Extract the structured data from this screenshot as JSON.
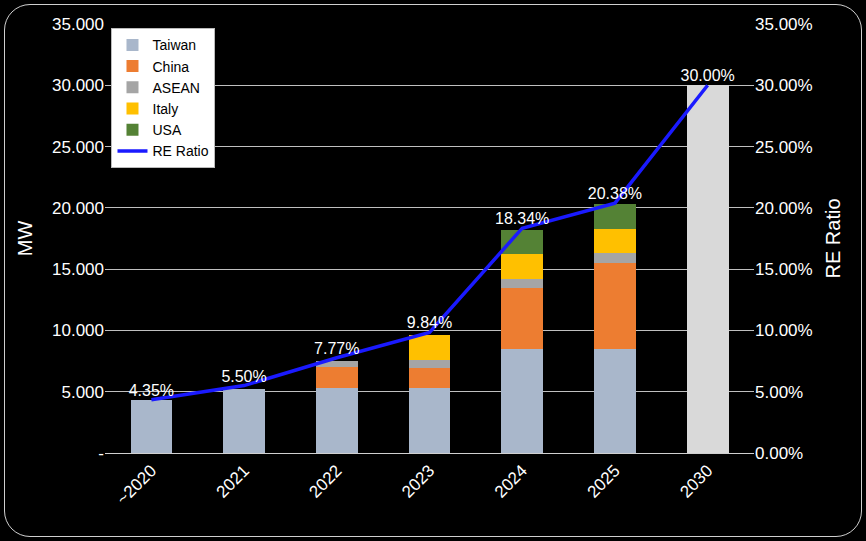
{
  "chart_data": {
    "type": "bar",
    "stacked": true,
    "grid": true,
    "legend": "upper left",
    "y_label": "MW",
    "y2_label": "RE Ratio",
    "categories": [
      "~2020",
      "2021",
      "2022",
      "2023",
      "2024",
      "2025",
      "2030"
    ],
    "ylim": [
      0,
      35000
    ],
    "yticks": [
      {
        "value": 0,
        "label": "-"
      },
      {
        "value": 5000,
        "label": "5.000"
      },
      {
        "value": 10000,
        "label": "10.000"
      },
      {
        "value": 15000,
        "label": "15.000"
      },
      {
        "value": 20000,
        "label": "20.000"
      },
      {
        "value": 25000,
        "label": "25.000"
      },
      {
        "value": 30000,
        "label": "30.000"
      },
      {
        "value": 35000,
        "label": "35.000"
      }
    ],
    "y2lim": [
      0,
      35
    ],
    "y2ticks": [
      {
        "value": 0,
        "label": "0.00%"
      },
      {
        "value": 5,
        "label": "5.00%"
      },
      {
        "value": 10,
        "label": "10.00%"
      },
      {
        "value": 15,
        "label": "15.00%"
      },
      {
        "value": 20,
        "label": "20.00%"
      },
      {
        "value": 25,
        "label": "25.00%"
      },
      {
        "value": 30,
        "label": "30.00%"
      },
      {
        "value": 35,
        "label": "35.00%"
      }
    ],
    "series": [
      {
        "name": "Taiwan",
        "type": "bar",
        "color": "#A9B7CB",
        "colors": [
          "#A9B7CB",
          "#A9B7CB",
          "#A9B7CB",
          "#A9B7CB",
          "#A9B7CB",
          "#A9B7CB",
          "#D9D9D9"
        ],
        "values": [
          4300,
          5200,
          5300,
          5300,
          8500,
          8500,
          30000
        ]
      },
      {
        "name": "China",
        "type": "bar",
        "color": "#ED7D31",
        "values": [
          0,
          0,
          1700,
          1600,
          5000,
          7000,
          0
        ]
      },
      {
        "name": "ASEAN",
        "type": "bar",
        "color": "#A5A5A5",
        "values": [
          0,
          0,
          500,
          700,
          700,
          800,
          0
        ]
      },
      {
        "name": "Italy",
        "type": "bar",
        "color": "#FFC000",
        "values": [
          0,
          0,
          0,
          2000,
          2000,
          2000,
          0
        ]
      },
      {
        "name": "USA",
        "type": "bar",
        "color": "#548235",
        "values": [
          0,
          0,
          0,
          0,
          2000,
          2000,
          0
        ]
      },
      {
        "name": "RE Ratio",
        "type": "line",
        "axis": "y2",
        "color": "#1A1AFF",
        "line_style": "solid",
        "data_labels": true,
        "values": [
          4.35,
          5.5,
          7.77,
          9.84,
          18.34,
          20.38,
          30.0
        ],
        "value_labels": [
          "4.35%",
          "5.50%",
          "7.77%",
          "9.84%",
          "18.34%",
          "20.38%",
          "30.00%"
        ]
      }
    ]
  }
}
